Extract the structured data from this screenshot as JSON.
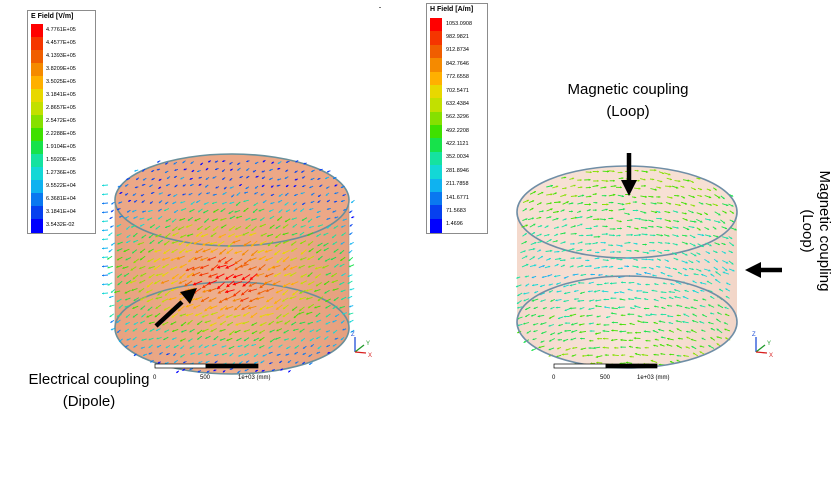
{
  "left_legend": {
    "title": "E Field [V/m]",
    "labels": [
      "4.7761E+05",
      "4.4577E+05",
      "4.1393E+05",
      "3.8209E+05",
      "3.5025E+05",
      "3.1841E+05",
      "2.8657E+05",
      "2.5472E+05",
      "2.2288E+05",
      "1.9104E+05",
      "1.5920E+05",
      "1.2736E+05",
      "9.5522E+04",
      "6.3681E+04",
      "3.1841E+04",
      "3.5432E-02"
    ]
  },
  "right_legend": {
    "title": "H Field [A/m]",
    "labels": [
      "1053.0908",
      "982.9821",
      "912.8734",
      "842.7646",
      "772.6558",
      "702.5471",
      "632.4384",
      "562.3296",
      "492.2208",
      "422.1121",
      "352.0034",
      "281.8946",
      "211.7858",
      "141.6771",
      "71.5683",
      "1.4696"
    ]
  },
  "colors": [
    "#ff0000",
    "#f53500",
    "#f05e00",
    "#f58a00",
    "#ffb000",
    "#e8d800",
    "#c2e000",
    "#86e000",
    "#3fe000",
    "#17e24b",
    "#15e2a0",
    "#13d8d6",
    "#0fb2f0",
    "#0a78f0",
    "#0640ef",
    "#0000ff"
  ],
  "annotations": {
    "electrical_line1": "Electrical coupling",
    "electrical_line2": "(Dipole)",
    "magnetic_top_line1": "Magnetic coupling",
    "magnetic_top_line2": "(Loop)",
    "magnetic_side_line1": "Magnetic coupling",
    "magnetic_side_line2": "(Loop)"
  },
  "axes_triad": {
    "z": "Z",
    "y": "Y",
    "x": "X"
  },
  "scale_bar": {
    "left": "0",
    "mid": "500",
    "right": "1e+03 (mm)"
  }
}
